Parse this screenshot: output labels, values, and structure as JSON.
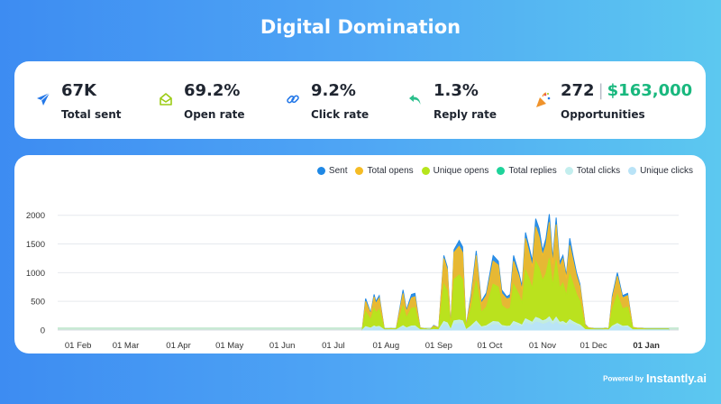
{
  "title": "Digital Domination",
  "stats": [
    {
      "value": "67K",
      "label": "Total sent",
      "icon": "send-icon",
      "color": "#2478e8"
    },
    {
      "value": "69.2%",
      "label": "Open rate",
      "icon": "open-envelope-icon",
      "color": "#9ccc16"
    },
    {
      "value": "9.2%",
      "label": "Click rate",
      "icon": "link-icon",
      "color": "#2478e8"
    },
    {
      "value": "1.3%",
      "label": "Reply rate",
      "icon": "reply-arrow-icon",
      "color": "#2bbf8c"
    },
    {
      "value": "272",
      "separator": "|",
      "amount": "$163,000",
      "label": "Opportunities",
      "icon": "party-popper-icon",
      "color": "#f0932b"
    }
  ],
  "footer": {
    "powered": "Powered by",
    "brand": "Instantly.ai"
  },
  "chart_data": {
    "type": "area",
    "legend_position": "top-right",
    "grid": true,
    "xlabel": "",
    "ylabel": "",
    "ylim": [
      0,
      2200
    ],
    "yticks": [
      0,
      500,
      1000,
      1500,
      2000
    ],
    "x_start": "2023-01-20",
    "x_end": "2024-01-20",
    "xticks": [
      {
        "date": "2023-02-01",
        "label": "01 Feb"
      },
      {
        "date": "2023-03-01",
        "label": "01 Mar"
      },
      {
        "date": "2023-04-01",
        "label": "01 Apr"
      },
      {
        "date": "2023-05-01",
        "label": "01 May"
      },
      {
        "date": "2023-06-01",
        "label": "01 Jun"
      },
      {
        "date": "2023-07-01",
        "label": "01 Jul"
      },
      {
        "date": "2023-08-01",
        "label": "01 Aug"
      },
      {
        "date": "2023-09-01",
        "label": "01 Sep"
      },
      {
        "date": "2023-10-01",
        "label": "01 Oct"
      },
      {
        "date": "2023-11-01",
        "label": "01 Nov"
      },
      {
        "date": "2023-12-01",
        "label": "01 Dec"
      },
      {
        "date": "2024-01-01",
        "label": "01 Jan",
        "bold": true
      }
    ],
    "x": [
      "2023-07-18",
      "2023-07-20",
      "2023-07-23",
      "2023-07-25",
      "2023-07-26",
      "2023-07-28",
      "2023-07-31",
      "2023-08-04",
      "2023-08-07",
      "2023-08-11",
      "2023-08-13",
      "2023-08-16",
      "2023-08-18",
      "2023-08-21",
      "2023-08-23",
      "2023-08-27",
      "2023-08-29",
      "2023-09-01",
      "2023-09-04",
      "2023-09-06",
      "2023-09-08",
      "2023-09-10",
      "2023-09-13",
      "2023-09-15",
      "2023-09-17",
      "2023-09-20",
      "2023-09-23",
      "2023-09-26",
      "2023-09-29",
      "2023-10-03",
      "2023-10-06",
      "2023-10-08",
      "2023-10-11",
      "2023-10-13",
      "2023-10-15",
      "2023-10-18",
      "2023-10-20",
      "2023-10-22",
      "2023-10-24",
      "2023-10-26",
      "2023-10-28",
      "2023-10-30",
      "2023-11-01",
      "2023-11-03",
      "2023-11-05",
      "2023-11-07",
      "2023-11-09",
      "2023-11-11",
      "2023-11-13",
      "2023-11-15",
      "2023-11-17",
      "2023-11-19",
      "2023-11-21",
      "2023-11-23",
      "2023-11-26",
      "2023-11-28",
      "2023-11-30",
      "2023-12-02",
      "2023-12-04",
      "2023-12-06",
      "2023-12-08",
      "2023-12-10",
      "2023-12-12",
      "2023-12-15",
      "2023-12-18",
      "2023-12-21",
      "2023-12-24",
      "2023-12-27",
      "2023-12-29",
      "2024-01-01",
      "2024-01-03",
      "2024-01-05",
      "2024-01-07",
      "2024-01-09",
      "2024-01-11",
      "2024-01-14"
    ],
    "series": [
      {
        "name": "Sent",
        "color": "#1f88e5",
        "values": [
          0,
          550,
          300,
          620,
          500,
          600,
          20,
          25,
          20,
          700,
          350,
          620,
          640,
          40,
          25,
          10,
          80,
          40,
          1300,
          1100,
          50,
          1400,
          1560,
          1450,
          50,
          620,
          1380,
          500,
          650,
          1300,
          1200,
          700,
          580,
          620,
          1300,
          1000,
          760,
          1700,
          1460,
          1200,
          1940,
          1770,
          1380,
          1600,
          2020,
          1240,
          1960,
          1180,
          1300,
          950,
          1600,
          1280,
          1000,
          800,
          100,
          40,
          30,
          20,
          20,
          20,
          30,
          20,
          600,
          1000,
          600,
          640,
          50,
          30,
          30,
          20,
          20,
          20,
          20,
          20,
          20,
          20
        ]
      },
      {
        "name": "Total opens",
        "color": "#f5bc25",
        "values": [
          0,
          500,
          280,
          580,
          460,
          560,
          20,
          25,
          20,
          640,
          320,
          560,
          580,
          40,
          25,
          10,
          70,
          40,
          1250,
          1050,
          50,
          1350,
          1460,
          1350,
          50,
          560,
          1300,
          460,
          600,
          1200,
          1130,
          640,
          540,
          560,
          1200,
          940,
          700,
          1600,
          1360,
          1100,
          1800,
          1620,
          1300,
          1480,
          1880,
          1150,
          1840,
          1100,
          1240,
          900,
          1480,
          1200,
          940,
          760,
          90,
          40,
          30,
          20,
          20,
          20,
          30,
          20,
          560,
          940,
          560,
          600,
          50,
          30,
          30,
          20,
          20,
          20,
          20,
          20,
          20,
          20
        ]
      },
      {
        "name": "Unique opens",
        "color": "#b6e51c",
        "values": [
          0,
          320,
          180,
          380,
          300,
          360,
          15,
          20,
          15,
          420,
          210,
          380,
          390,
          30,
          20,
          8,
          50,
          30,
          800,
          680,
          40,
          880,
          960,
          880,
          40,
          380,
          860,
          310,
          400,
          800,
          750,
          430,
          360,
          380,
          800,
          620,
          470,
          1050,
          900,
          720,
          1200,
          1080,
          860,
          980,
          1250,
          760,
          1220,
          730,
          820,
          600,
          980,
          800,
          620,
          500,
          60,
          30,
          20,
          15,
          15,
          15,
          20,
          15,
          370,
          620,
          370,
          400,
          40,
          20,
          20,
          15,
          15,
          15,
          15,
          15,
          15,
          15
        ]
      },
      {
        "name": "Total replies",
        "color": "#1ed39a",
        "values": [
          0,
          8,
          5,
          10,
          8,
          9,
          1,
          1,
          1,
          12,
          6,
          10,
          10,
          1,
          1,
          1,
          2,
          1,
          20,
          18,
          1,
          22,
          25,
          22,
          1,
          10,
          22,
          8,
          10,
          20,
          19,
          11,
          9,
          10,
          20,
          16,
          12,
          27,
          23,
          18,
          30,
          28,
          22,
          25,
          32,
          19,
          31,
          19,
          21,
          15,
          25,
          20,
          16,
          13,
          2,
          1,
          1,
          1,
          1,
          1,
          1,
          1,
          9,
          16,
          9,
          10,
          1,
          1,
          1,
          1,
          1,
          1,
          1,
          1,
          1,
          1
        ]
      },
      {
        "name": "Total clicks",
        "color": "#c3eeee",
        "values": [
          0,
          60,
          35,
          70,
          55,
          65,
          3,
          4,
          3,
          75,
          38,
          70,
          72,
          5,
          4,
          2,
          10,
          5,
          150,
          125,
          6,
          160,
          175,
          160,
          6,
          70,
          155,
          55,
          75,
          150,
          140,
          80,
          65,
          70,
          150,
          115,
          85,
          195,
          165,
          135,
          220,
          200,
          160,
          180,
          230,
          140,
          225,
          135,
          150,
          110,
          180,
          145,
          115,
          90,
          10,
          5,
          4,
          3,
          3,
          3,
          4,
          3,
          68,
          115,
          68,
          72,
          6,
          4,
          4,
          3,
          3,
          3,
          3,
          3,
          3,
          3
        ]
      },
      {
        "name": "Unique clicks",
        "color": "#b9e3f7",
        "values": [
          0,
          40,
          22,
          45,
          36,
          42,
          2,
          3,
          2,
          50,
          25,
          45,
          46,
          3,
          3,
          1,
          7,
          3,
          95,
          80,
          4,
          100,
          110,
          100,
          4,
          45,
          98,
          36,
          47,
          95,
          88,
          50,
          42,
          45,
          95,
          73,
          55,
          125,
          105,
          86,
          140,
          128,
          100,
          115,
          145,
          88,
          142,
          86,
          96,
          70,
          115,
          92,
          73,
          58,
          7,
          3,
          3,
          2,
          2,
          2,
          3,
          2,
          44,
          73,
          44,
          46,
          4,
          3,
          3,
          2,
          2,
          2,
          2,
          2,
          2,
          2
        ]
      }
    ]
  }
}
